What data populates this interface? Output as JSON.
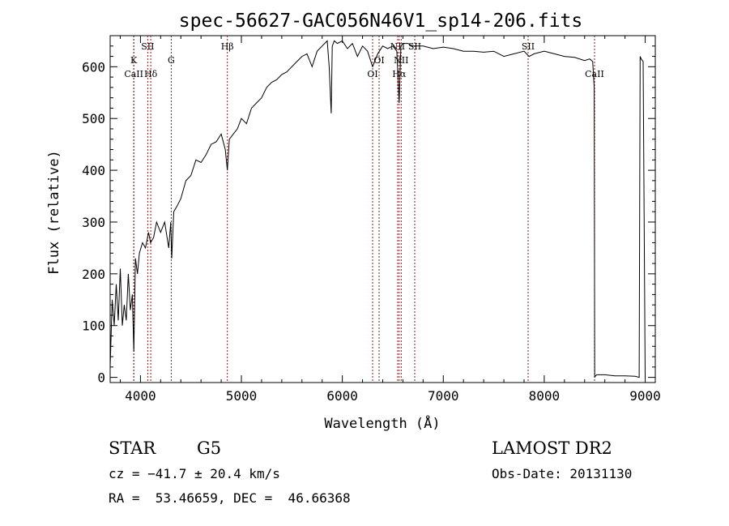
{
  "chart_data": {
    "type": "line",
    "title": "spec-56627-GAC056N46V1_sp14-206.fits",
    "xlabel": "Wavelength (Å)",
    "ylabel": "Flux (relative)",
    "xlim": [
      3700,
      9100
    ],
    "ylim": [
      -10,
      660
    ],
    "grid": false,
    "xticks": [
      4000,
      5000,
      6000,
      7000,
      8000,
      9000
    ],
    "yticks": [
      0,
      100,
      200,
      300,
      400,
      500,
      600
    ],
    "line_color": "#000000",
    "marker_color": "#8b1a1a",
    "spectral_lines": [
      {
        "label": "CaII",
        "x": 3934,
        "row": "low"
      },
      {
        "label": "K",
        "x": 3934,
        "row": "mid"
      },
      {
        "label": "SII",
        "x": 4072,
        "row": "high"
      },
      {
        "label": "Hδ",
        "x": 4102,
        "row": "low"
      },
      {
        "label": "G",
        "x": 4305,
        "row": "mid"
      },
      {
        "label": "Hβ",
        "x": 4861,
        "row": "high"
      },
      {
        "label": "OI",
        "x": 6300,
        "row": "low"
      },
      {
        "label": "OI",
        "x": 6364,
        "row": "mid"
      },
      {
        "label": "NII",
        "x": 6548,
        "row": "high"
      },
      {
        "label": "Hα",
        "x": 6563,
        "row": "low"
      },
      {
        "label": "NII",
        "x": 6583,
        "row": "mid"
      },
      {
        "label": "SII",
        "x": 6717,
        "row": "high"
      },
      {
        "label": "SII",
        "x": 7840,
        "row": "high"
      },
      {
        "label": "CaII",
        "x": 8498,
        "row": "low"
      }
    ],
    "series": [
      {
        "x": [
          3700,
          3720,
          3740,
          3760,
          3780,
          3800,
          3820,
          3840,
          3860,
          3880,
          3900,
          3920,
          3934,
          3950,
          3970,
          3990,
          4020,
          4050,
          4080,
          4100,
          4130,
          4160,
          4200,
          4240,
          4280,
          4300,
          4310,
          4330,
          4360,
          4400,
          4450,
          4500,
          4550,
          4600,
          4650,
          4700,
          4750,
          4800,
          4840,
          4861,
          4880,
          4920,
          4960,
          5000,
          5050,
          5100,
          5150,
          5200,
          5250,
          5300,
          5350,
          5400,
          5450,
          5500,
          5550,
          5600,
          5650,
          5700,
          5750,
          5800,
          5850,
          5870,
          5890,
          5900,
          5920,
          5950,
          6000,
          6050,
          6100,
          6150,
          6200,
          6250,
          6300,
          6350,
          6400,
          6450,
          6500,
          6540,
          6563,
          6580,
          6600,
          6650,
          6700,
          6800,
          6900,
          7000,
          7100,
          7200,
          7300,
          7400,
          7500,
          7600,
          7700,
          7800,
          7850,
          7900,
          8000,
          8100,
          8200,
          8300,
          8400,
          8450,
          8480,
          8495,
          8500,
          8505,
          8520,
          8600,
          8700,
          8800,
          8900,
          8940,
          8950,
          8960,
          8980,
          9000
        ],
        "y": [
          20,
          150,
          100,
          180,
          110,
          210,
          100,
          140,
          110,
          200,
          130,
          160,
          50,
          230,
          200,
          240,
          260,
          250,
          280,
          260,
          270,
          300,
          280,
          300,
          250,
          300,
          230,
          320,
          330,
          345,
          380,
          390,
          420,
          415,
          430,
          450,
          455,
          470,
          440,
          400,
          460,
          470,
          480,
          500,
          490,
          520,
          530,
          540,
          560,
          570,
          575,
          585,
          590,
          600,
          610,
          620,
          625,
          600,
          630,
          640,
          650,
          600,
          510,
          640,
          650,
          645,
          650,
          635,
          645,
          620,
          640,
          630,
          600,
          625,
          640,
          635,
          640,
          630,
          530,
          640,
          645,
          645,
          640,
          640,
          635,
          638,
          635,
          630,
          630,
          628,
          630,
          620,
          625,
          630,
          620,
          625,
          630,
          625,
          620,
          618,
          612,
          615,
          610,
          560,
          0,
          2,
          5,
          5,
          3,
          3,
          2,
          0,
          620,
          615,
          610,
          0
        ]
      }
    ]
  },
  "info": {
    "class": "STAR",
    "subclass": "G5",
    "survey": "LAMOST DR2",
    "cz": "cz = −41.7 ± 20.4 km/s",
    "obs_date": "Obs-Date: 20131130",
    "coords": "RA =  53.46659, DEC =  46.66368"
  }
}
